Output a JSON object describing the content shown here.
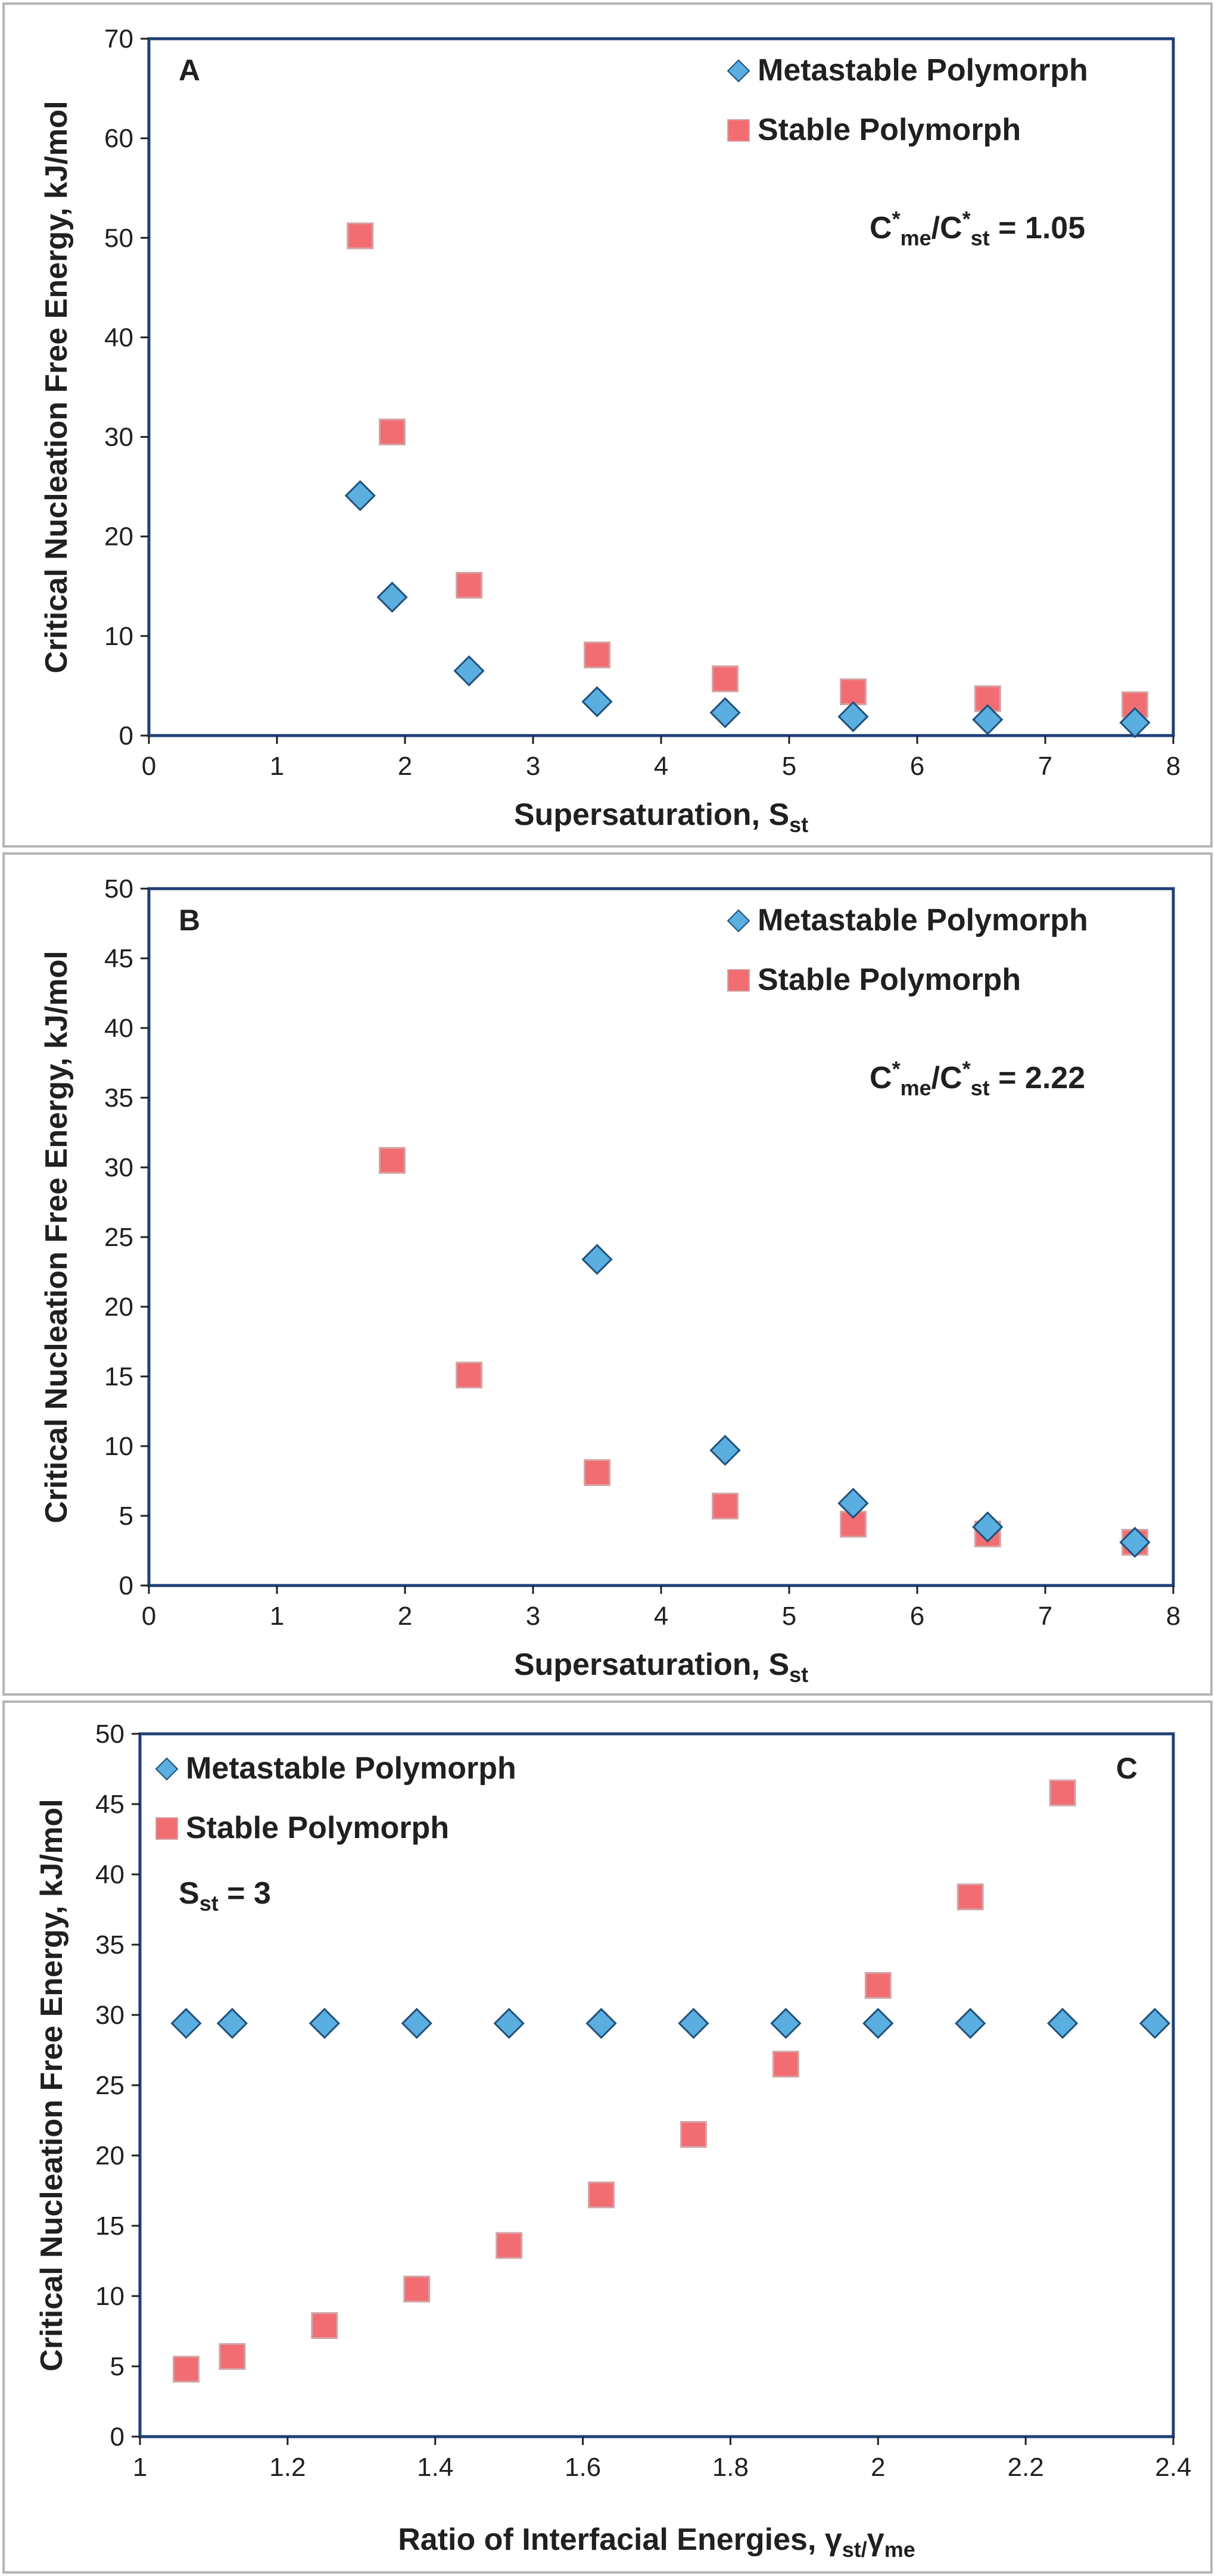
{
  "colors": {
    "metastable_fill": "#5aaee0",
    "metastable_stroke": "#20507a",
    "stable_fill": "#f26d72",
    "stable_stroke": "#d4a4a6",
    "axis_frame": "#1f3f78"
  },
  "chart_data": [
    {
      "type": "scatter",
      "panel_label": "A",
      "title": "",
      "xlabel": "Supersaturation, S",
      "xlabel_sub": "st",
      "ylabel": "Critical Nucleation Free Energy, kJ/mol",
      "xlim": [
        0,
        8
      ],
      "ylim": [
        0,
        70
      ],
      "xticks": [
        0,
        1,
        2,
        3,
        4,
        5,
        6,
        7,
        8
      ],
      "yticks": [
        0,
        10,
        20,
        30,
        40,
        50,
        60,
        70
      ],
      "legend_position": "top-right",
      "annotation": {
        "parts": [
          "C",
          "*",
          "me",
          "/C",
          "*",
          "st",
          " = 1.05"
        ]
      },
      "series": [
        {
          "name": "Metastable Polymorph",
          "marker": "diamond",
          "x": [
            1.65,
            1.9,
            2.5,
            3.5,
            4.5,
            5.5,
            6.55,
            7.7
          ],
          "y": [
            24.1,
            13.9,
            6.5,
            3.4,
            2.3,
            1.9,
            1.6,
            1.3
          ]
        },
        {
          "name": "Stable Polymorph",
          "marker": "square",
          "x": [
            1.65,
            1.9,
            2.5,
            3.5,
            4.5,
            5.5,
            6.55,
            7.7
          ],
          "y": [
            50.2,
            30.5,
            15.1,
            8.1,
            5.7,
            4.4,
            3.7,
            3.1
          ]
        }
      ]
    },
    {
      "type": "scatter",
      "panel_label": "B",
      "title": "",
      "xlabel": "Supersaturation, S",
      "xlabel_sub": "st",
      "ylabel": "Critical Nucleation Free Energy, kJ/mol",
      "xlim": [
        0,
        8
      ],
      "ylim": [
        0,
        50
      ],
      "xticks": [
        0,
        1,
        2,
        3,
        4,
        5,
        6,
        7,
        8
      ],
      "yticks": [
        0,
        5,
        10,
        15,
        20,
        25,
        30,
        35,
        40,
        45,
        50
      ],
      "legend_position": "top-right",
      "annotation": {
        "parts": [
          "C",
          "*",
          "me",
          "/C",
          "*",
          "st",
          " = 2.22"
        ]
      },
      "series": [
        {
          "name": "Metastable Polymorph",
          "marker": "diamond",
          "x": [
            3.5,
            4.5,
            5.5,
            6.55,
            7.7
          ],
          "y": [
            23.4,
            9.7,
            5.9,
            4.2,
            3.1
          ]
        },
        {
          "name": "Stable Polymorph",
          "marker": "square",
          "x": [
            1.9,
            2.5,
            3.5,
            4.5,
            5.5,
            6.55,
            7.7
          ],
          "y": [
            30.5,
            15.1,
            8.1,
            5.7,
            4.4,
            3.7,
            3.1
          ]
        }
      ]
    },
    {
      "type": "scatter",
      "panel_label": "C",
      "title": "",
      "xlabel": "Ratio of Interfacial Energies, γ",
      "xlabel_sub": "st/",
      "xlabel_tail": "γ",
      "xlabel_sub2": "me",
      "ylabel": "Critical Nucleation Free Energy, kJ/mol",
      "xlim": [
        1,
        2.4
      ],
      "ylim": [
        0,
        50
      ],
      "xticks": [
        1,
        1.2,
        1.4,
        1.6,
        1.8,
        2,
        2.2,
        2.4
      ],
      "yticks": [
        0,
        5,
        10,
        15,
        20,
        25,
        30,
        35,
        40,
        45,
        50
      ],
      "legend_position": "top-left",
      "annotation": {
        "parts": [
          "S",
          "st",
          " = 3"
        ]
      },
      "series": [
        {
          "name": "Metastable Polymorph",
          "marker": "diamond",
          "x": [
            1.0625,
            1.125,
            1.25,
            1.375,
            1.5,
            1.625,
            1.75,
            1.875,
            2.0,
            2.125,
            2.25,
            2.375
          ],
          "y": [
            29.4,
            29.4,
            29.4,
            29.4,
            29.4,
            29.4,
            29.4,
            29.4,
            29.4,
            29.4,
            29.4,
            29.4
          ]
        },
        {
          "name": "Stable Polymorph",
          "marker": "square",
          "x": [
            1.0625,
            1.125,
            1.25,
            1.375,
            1.5,
            1.625,
            1.75,
            1.875,
            2.0,
            2.125,
            2.25
          ],
          "y": [
            4.8,
            5.7,
            7.9,
            10.5,
            13.6,
            17.2,
            21.5,
            26.5,
            32.1,
            38.4,
            45.8
          ]
        }
      ]
    }
  ]
}
